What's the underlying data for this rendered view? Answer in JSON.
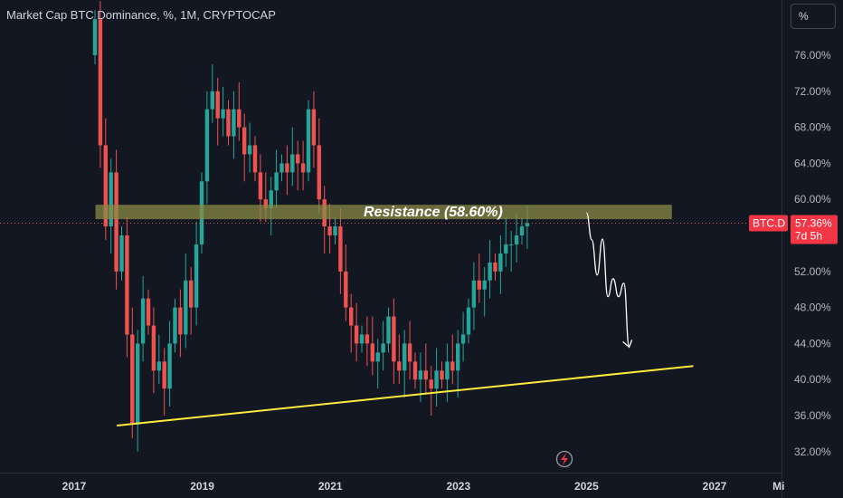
{
  "title": "Market Cap BTC Dominance, %, 1M, CRYPTOCAP",
  "scale_button": "%",
  "price_tag": {
    "symbol": "BTC.D",
    "value": "57.36%",
    "countdown": "7d 5h"
  },
  "lightning_icon": "lightning-icon",
  "colors": {
    "up": "#26a69a",
    "down": "#ef5350",
    "support": "#ffeb3b",
    "zone": "#7a7a3d",
    "background": "#131722"
  },
  "chart_data": {
    "type": "candlestick",
    "title": "Market Cap BTC Dominance, %, 1M, CRYPTOCAP",
    "timeframe": "1M",
    "ytick_labels": [
      "76.00%",
      "72.00%",
      "68.00%",
      "64.00%",
      "60.00%",
      "56.00%",
      "52.00%",
      "48.00%",
      "44.00%",
      "40.00%",
      "36.00%",
      "32.00%"
    ],
    "ytick_values": [
      76,
      72,
      68,
      64,
      60,
      56,
      52,
      48,
      44,
      40,
      36,
      32
    ],
    "ylim": [
      29.5,
      81.5
    ],
    "xtick_labels": [
      "2017",
      "2019",
      "2021",
      "2023",
      "2025",
      "2027",
      "Mi"
    ],
    "xtick_values": [
      "2017-01",
      "2019-01",
      "2021-01",
      "2023-01",
      "2025-01",
      "2027-01",
      "2028-01"
    ],
    "xlim": [
      "2016-08",
      "2028-04"
    ],
    "grid": false,
    "current_value": 57.36,
    "candle_close": [
      80,
      66,
      57,
      63,
      52,
      56,
      45,
      35,
      44,
      49,
      46,
      41,
      42,
      39,
      44,
      48,
      45,
      51,
      48,
      55,
      62,
      70,
      72,
      69,
      70,
      67,
      70,
      68,
      65,
      66,
      63,
      60,
      59,
      61,
      63,
      64,
      63,
      65,
      64,
      63,
      70,
      66,
      60,
      57,
      56,
      57,
      52,
      48,
      46,
      44,
      45,
      44,
      42,
      43,
      44,
      47,
      42,
      41,
      44,
      42,
      40,
      41,
      40,
      39,
      41,
      40,
      42,
      41,
      44,
      45,
      48,
      51,
      50,
      51,
      53,
      52,
      54,
      55,
      55,
      56,
      57,
      57.36
    ],
    "resistance": {
      "label": "Resistance (58.60%)",
      "value": 58.6,
      "band": [
        57.8,
        59.4
      ],
      "x_start": "2017-05",
      "x_end": "2026-05"
    },
    "support_line": {
      "from": {
        "x": "2017-09",
        "y": 34.9
      },
      "to": {
        "x": "2026-09",
        "y": 41.5
      }
    },
    "projection": [
      {
        "x": "2025-01",
        "y": 58.5
      },
      {
        "x": "2025-02",
        "y": 55.5
      },
      {
        "x": "2025-03",
        "y": 51.6
      },
      {
        "x": "2025-04",
        "y": 55.6
      },
      {
        "x": "2025-05",
        "y": 49.2
      },
      {
        "x": "2025-06",
        "y": 51.2
      },
      {
        "x": "2025-07",
        "y": 49.2
      },
      {
        "x": "2025-08",
        "y": 50.7
      },
      {
        "x": "2025-09",
        "y": 43.6
      }
    ]
  }
}
